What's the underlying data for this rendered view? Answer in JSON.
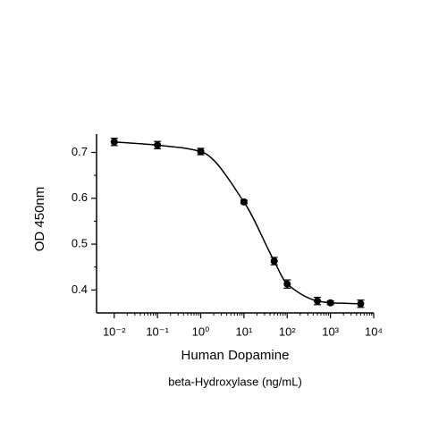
{
  "chart_data": {
    "type": "scatter",
    "x_label": "Human Dopamine",
    "subtitle": "beta-Hydroxylase (ng/mL)",
    "y_label": "OD 450nm",
    "x_scale": "log",
    "xlim": [
      0.0039,
      10000
    ],
    "xticks": [
      {
        "value": 0.01,
        "label": "10⁻²"
      },
      {
        "value": 0.1,
        "label": "10⁻¹"
      },
      {
        "value": 1,
        "label": "10⁰"
      },
      {
        "value": 10,
        "label": "10¹"
      },
      {
        "value": 100,
        "label": "10²"
      },
      {
        "value": 1000,
        "label": "10³"
      },
      {
        "value": 10000,
        "label": "10⁴"
      }
    ],
    "ylim": [
      0.35,
      0.74
    ],
    "yticks": [
      0.4,
      0.5,
      0.6,
      0.7
    ],
    "color": "#000000",
    "x": [
      0.01,
      0.1,
      1,
      10,
      50,
      100,
      500,
      1000,
      5000
    ],
    "values": [
      0.723,
      0.716,
      0.702,
      0.592,
      0.463,
      0.413,
      0.376,
      0.372,
      0.37
    ],
    "errors": [
      0.008,
      0.008,
      0.007,
      0.004,
      0.008,
      0.009,
      0.008,
      0.004,
      0.008
    ]
  }
}
